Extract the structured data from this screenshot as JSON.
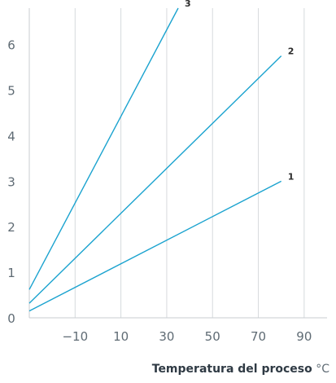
{
  "chart_data": {
    "type": "line",
    "xlabel": "Temperatura del proceso",
    "xunit": "°C",
    "xlim": [
      -30,
      100
    ],
    "ylim": [
      0,
      6.8
    ],
    "xticks": [
      -10,
      10,
      30,
      50,
      70,
      90
    ],
    "xtick_labels": [
      "−10",
      "10",
      "30",
      "50",
      "70",
      "90"
    ],
    "yticks": [
      0,
      1,
      2,
      3,
      4,
      5,
      6
    ],
    "grid": true,
    "color": "#1ba3cf",
    "series": [
      {
        "name": "1",
        "x": [
          -30,
          80
        ],
        "y": [
          0.15,
          3.0
        ]
      },
      {
        "name": "2",
        "x": [
          -30,
          80
        ],
        "y": [
          0.32,
          5.75
        ]
      },
      {
        "name": "3",
        "x": [
          -30,
          35
        ],
        "y": [
          0.62,
          6.8
        ]
      }
    ]
  }
}
